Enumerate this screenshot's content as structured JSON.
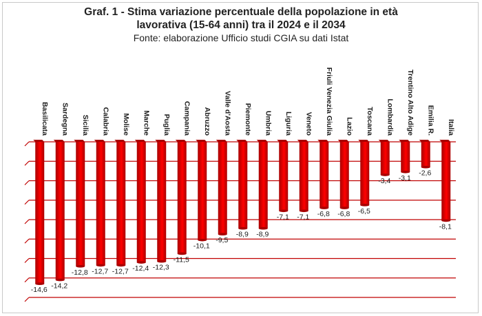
{
  "header": {
    "title_line1": "Graf. 1 - Stima variazione percentuale della popolazione in età",
    "title_line2": "lavorativa (15-64 anni) tra il 2024 e il 2034",
    "subtitle": "Fonte: elaborazione Ufficio studi CGIA su dati Istat"
  },
  "chart_data": {
    "type": "bar",
    "title": "Graf. 1 - Stima variazione percentuale della popolazione in età lavorativa (15-64 anni) tra il 2024 e il 2034",
    "subtitle": "Fonte: elaborazione Ufficio studi CGIA su dati Istat",
    "categories": [
      "Basilicata",
      "Sardegna",
      "Sicilia",
      "Calabria",
      "Molise",
      "Marche",
      "Puglia",
      "Campania",
      "Abruzzo",
      "Valle d'Aosta",
      "Piemonte",
      "Umbria",
      "Liguria",
      "Veneto",
      "Friuli Venezia Giulia",
      "Lazio",
      "Toscana",
      "Lombardia",
      "Trentino Alto Adige",
      "Emilia R.",
      "Italia"
    ],
    "values": [
      -14.6,
      -14.2,
      -12.8,
      -12.7,
      -12.7,
      -12.4,
      -12.3,
      -11.5,
      -10.1,
      -9.5,
      -8.9,
      -8.9,
      -7.1,
      -7.1,
      -6.8,
      -6.8,
      -6.5,
      -3.4,
      -3.1,
      -2.6,
      -8.1
    ],
    "value_labels": [
      "-14,6",
      "-14,2",
      "-12,8",
      "-12,7",
      "-12,7",
      "-12,4",
      "-12,3",
      "-11,5",
      "-10,1",
      "-9,5",
      "-8,9",
      "-8,9",
      "-7,1",
      "-7,1",
      "-6,8",
      "-6,8",
      "-6,5",
      "-3,4",
      "-3,1",
      "-2,6",
      "-8,1"
    ],
    "ylim": [
      -16,
      0
    ],
    "grid": true,
    "legend": "none",
    "colors": {
      "bar": "#ff0000",
      "bar_dark": "#a80000",
      "grid": "#c00000"
    }
  }
}
